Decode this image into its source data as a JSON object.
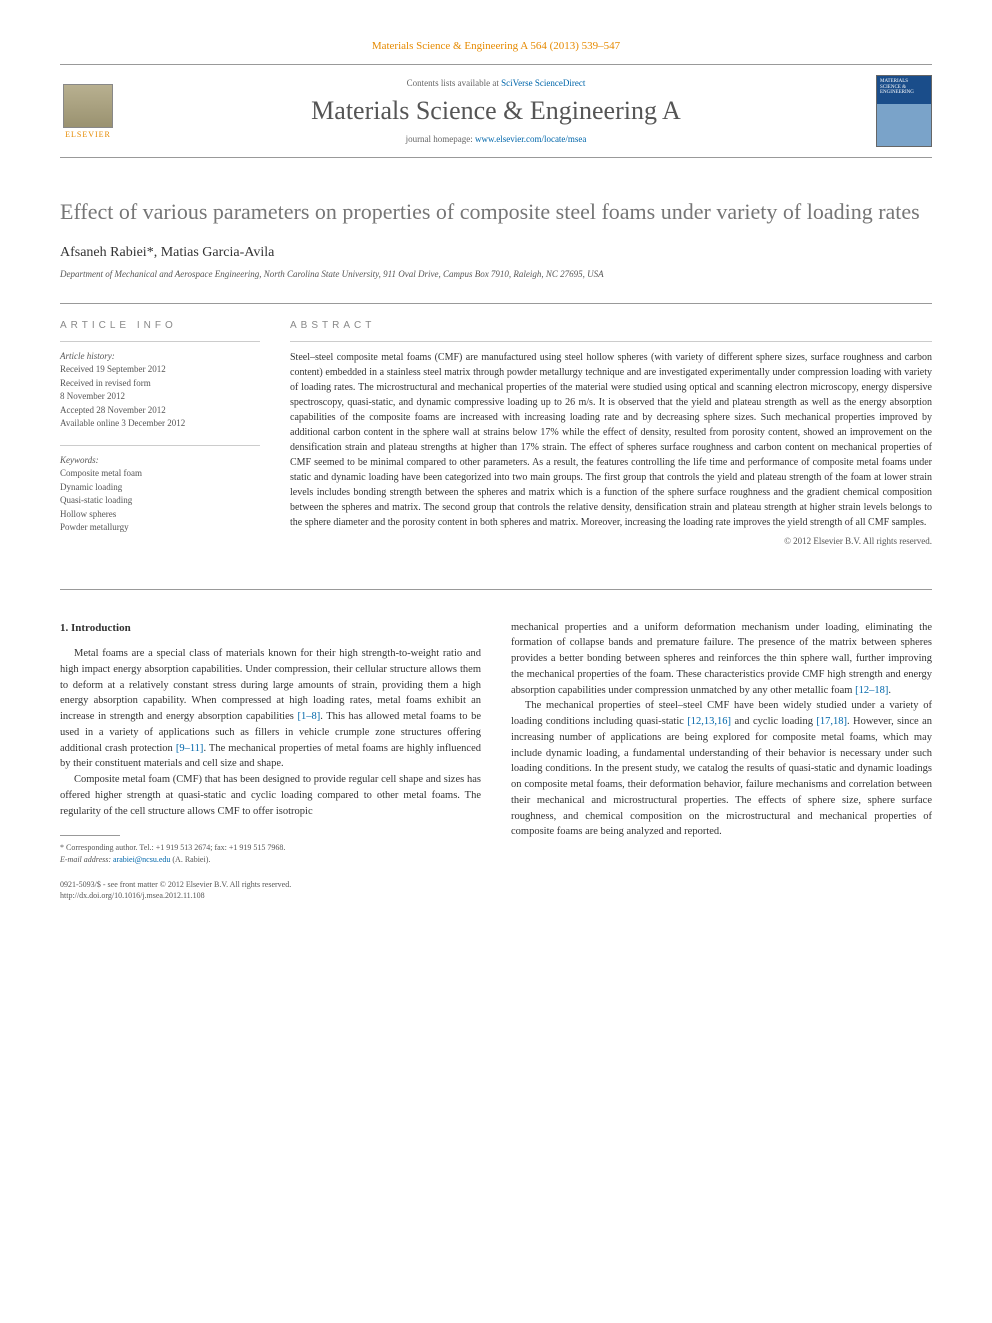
{
  "header": {
    "citation": "Materials Science & Engineering A 564 (2013) 539–547",
    "contents_prefix": "Contents lists available at ",
    "contents_link": "SciVerse ScienceDirect",
    "journal_title": "Materials Science & Engineering A",
    "homepage_prefix": "journal homepage: ",
    "homepage_url": "www.elsevier.com/locate/msea",
    "elsevier_label": "ELSEVIER",
    "cover_text": "MATERIALS SCIENCE & ENGINEERING"
  },
  "article": {
    "title": "Effect of various parameters on properties of composite steel foams under variety of loading rates",
    "authors": "Afsaneh Rabiei*, Matias Garcia-Avila",
    "affiliation": "Department of Mechanical and Aerospace Engineering, North Carolina State University, 911 Oval Drive, Campus Box 7910, Raleigh, NC 27695, USA"
  },
  "info": {
    "heading": "ARTICLE INFO",
    "history_label": "Article history:",
    "history": [
      "Received 19 September 2012",
      "Received in revised form",
      "8 November 2012",
      "Accepted 28 November 2012",
      "Available online 3 December 2012"
    ],
    "keywords_label": "Keywords:",
    "keywords": [
      "Composite metal foam",
      "Dynamic loading",
      "Quasi-static loading",
      "Hollow spheres",
      "Powder metallurgy"
    ]
  },
  "abstract": {
    "heading": "ABSTRACT",
    "text": "Steel–steel composite metal foams (CMF) are manufactured using steel hollow spheres (with variety of different sphere sizes, surface roughness and carbon content) embedded in a stainless steel matrix through powder metallurgy technique and are investigated experimentally under compression loading with variety of loading rates. The microstructural and mechanical properties of the material were studied using optical and scanning electron microscopy, energy dispersive spectroscopy, quasi-static, and dynamic compressive loading up to 26 m/s. It is observed that the yield and plateau strength as well as the energy absorption capabilities of the composite foams are increased with increasing loading rate and by decreasing sphere sizes. Such mechanical properties improved by additional carbon content in the sphere wall at strains below 17% while the effect of density, resulted from porosity content, showed an improvement on the densification strain and plateau strengths at higher than 17% strain. The effect of spheres surface roughness and carbon content on mechanical properties of CMF seemed to be minimal compared to other parameters. As a result, the features controlling the life time and performance of composite metal foams under static and dynamic loading have been categorized into two main groups. The first group that controls the yield and plateau strength of the foam at lower strain levels includes bonding strength between the spheres and matrix which is a function of the sphere surface roughness and the gradient chemical composition between the spheres and matrix. The second group that controls the relative density, densification strain and plateau strength at higher strain levels belongs to the sphere diameter and the porosity content in both spheres and matrix. Moreover, increasing the loading rate improves the yield strength of all CMF samples.",
    "copyright": "© 2012 Elsevier B.V. All rights reserved."
  },
  "body": {
    "section_number": "1.",
    "section_title": "Introduction",
    "col1_p1": "Metal foams are a special class of materials known for their high strength-to-weight ratio and high impact energy absorption capabilities. Under compression, their cellular structure allows them to deform at a relatively constant stress during large amounts of strain, providing them a high energy absorption capability. When compressed at high loading rates, metal foams exhibit an increase in strength and energy absorption capabilities ",
    "col1_ref1": "[1–8]",
    "col1_p1b": ". This has allowed metal foams to be used in a variety of applications such as fillers in vehicle crumple zone structures offering additional crash protection ",
    "col1_ref2": "[9–11]",
    "col1_p1c": ". The mechanical properties of metal foams are highly influenced by their constituent materials and cell size and shape.",
    "col1_p2": "Composite metal foam (CMF) that has been designed to provide regular cell shape and sizes has offered higher strength at quasi-static and cyclic loading compared to other metal foams. The regularity of the cell structure allows CMF to offer isotropic",
    "col2_p1": "mechanical properties and a uniform deformation mechanism under loading, eliminating the formation of collapse bands and premature failure. The presence of the matrix between spheres provides a better bonding between spheres and reinforces the thin sphere wall, further improving the mechanical properties of the foam. These characteristics provide CMF high strength and energy absorption capabilities under compression unmatched by any other metallic foam ",
    "col2_ref1": "[12–18]",
    "col2_p1b": ".",
    "col2_p2": "The mechanical properties of steel–steel CMF have been widely studied under a variety of loading conditions including quasi-static ",
    "col2_ref2": "[12,13,16]",
    "col2_p2b": " and cyclic loading ",
    "col2_ref3": "[17,18]",
    "col2_p2c": ". However, since an increasing number of applications are being explored for composite metal foams, which may include dynamic loading, a fundamental understanding of their behavior is necessary under such loading conditions. In the present study, we catalog the results of quasi-static and dynamic loadings on composite metal foams, their deformation behavior, failure mechanisms and correlation between their mechanical and microstructural properties. The effects of sphere size, sphere surface roughness, and chemical composition on the microstructural and mechanical properties of composite foams are being analyzed and reported."
  },
  "footnote": {
    "corresponding": "* Corresponding author. Tel.: +1 919 513 2674; fax: +1 919 515 7968.",
    "email_label": "E-mail address: ",
    "email": "arabiei@ncsu.edu",
    "email_suffix": " (A. Rabiei).",
    "issn": "0921-5093/$ - see front matter © 2012 Elsevier B.V. All rights reserved.",
    "doi": "http://dx.doi.org/10.1016/j.msea.2012.11.108"
  },
  "colors": {
    "link": "#0066aa",
    "orange": "#e68a00",
    "gray_text": "#767676"
  }
}
